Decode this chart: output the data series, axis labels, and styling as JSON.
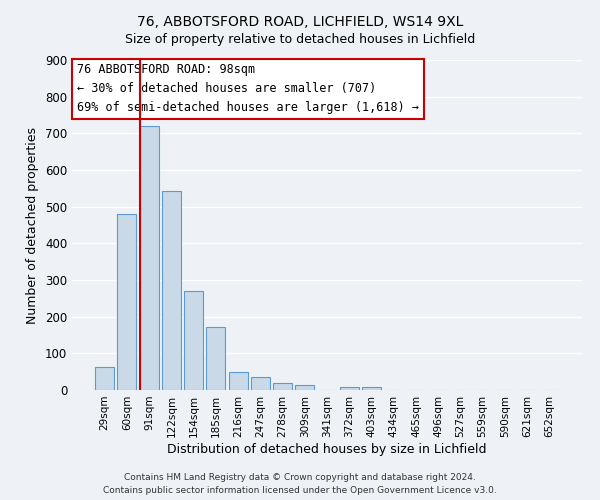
{
  "title": "76, ABBOTSFORD ROAD, LICHFIELD, WS14 9XL",
  "subtitle": "Size of property relative to detached houses in Lichfield",
  "xlabel": "Distribution of detached houses by size in Lichfield",
  "ylabel": "Number of detached properties",
  "bar_labels": [
    "29sqm",
    "60sqm",
    "91sqm",
    "122sqm",
    "154sqm",
    "185sqm",
    "216sqm",
    "247sqm",
    "278sqm",
    "309sqm",
    "341sqm",
    "372sqm",
    "403sqm",
    "434sqm",
    "465sqm",
    "496sqm",
    "527sqm",
    "559sqm",
    "590sqm",
    "621sqm",
    "652sqm"
  ],
  "bar_values": [
    62,
    481,
    720,
    543,
    270,
    172,
    48,
    35,
    20,
    14,
    0,
    8,
    8,
    0,
    0,
    0,
    0,
    0,
    0,
    0,
    0
  ],
  "bar_color": "#c9d9e8",
  "bar_edge_color": "#5b9bd5",
  "vline_color": "#cc0000",
  "vline_x_index": 2,
  "ylim": [
    0,
    900
  ],
  "yticks": [
    0,
    100,
    200,
    300,
    400,
    500,
    600,
    700,
    800,
    900
  ],
  "annotation_box_text": "76 ABBOTSFORD ROAD: 98sqm\n← 30% of detached houses are smaller (707)\n69% of semi-detached houses are larger (1,618) →",
  "annotation_box_color": "#ffffff",
  "annotation_box_edge_color": "#cc0000",
  "bg_color": "#eef2f7",
  "grid_color": "#ffffff",
  "footer_line1": "Contains HM Land Registry data © Crown copyright and database right 2024.",
  "footer_line2": "Contains public sector information licensed under the Open Government Licence v3.0."
}
